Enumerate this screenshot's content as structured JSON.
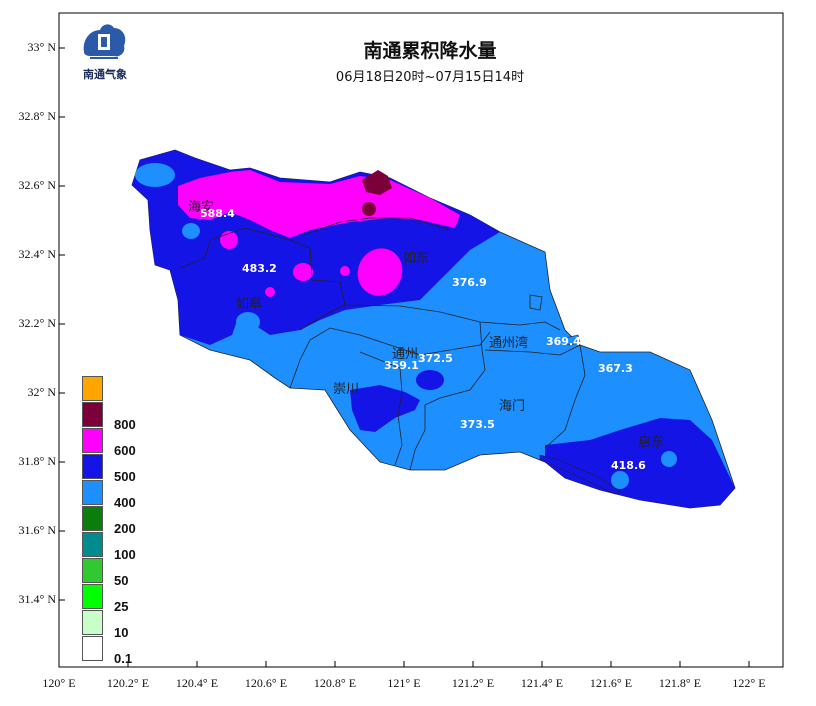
{
  "map": {
    "title": "南通累积降水量",
    "subtitle": "06月18日20时~07月15日14时",
    "logo_text": "南通气象"
  },
  "axes": {
    "y_ticks": [
      "33° N",
      "32.8° N",
      "32.6° N",
      "32.4° N",
      "32.2° N",
      "32° N",
      "31.8° N",
      "31.6° N",
      "31.4° N"
    ],
    "x_ticks": [
      "120° E",
      "120.2° E",
      "120.4° E",
      "120.6° E",
      "120.8° E",
      "121° E",
      "121.2° E",
      "121.4° E",
      "121.6° E",
      "121.8° E",
      "122° E"
    ]
  },
  "legend": [
    {
      "label": "",
      "color": "#ffa500"
    },
    {
      "label": "800",
      "color": "#7b003a"
    },
    {
      "label": "600",
      "color": "#ff00ff"
    },
    {
      "label": "500",
      "color": "#1414e6"
    },
    {
      "label": "400",
      "color": "#1e8fff"
    },
    {
      "label": "200",
      "color": "#0a7d0a"
    },
    {
      "label": "100",
      "color": "#008c8c"
    },
    {
      "label": "50",
      "color": "#32c832"
    },
    {
      "label": "25",
      "color": "#00ff00"
    },
    {
      "label": "10",
      "color": "#c8ffc8"
    },
    {
      "label": "0.1",
      "color": "#ffffff"
    }
  ],
  "places": {
    "haian": "海安",
    "rugao": "如皋",
    "rudong": "如东",
    "tongzhou": "通州",
    "tongzhouwan": "通州湾",
    "chongchuan": "崇川",
    "haimen": "海门",
    "qidong": "启东"
  },
  "values": {
    "haian": "588.4",
    "rugao": "483.2",
    "rudong": "376.9",
    "tongzhou": "372.5",
    "chongchuan": "359.1",
    "tongzhouwan": "369.4",
    "haimen": "373.5",
    "qidong_north": "367.3",
    "qidong": "418.6"
  }
}
